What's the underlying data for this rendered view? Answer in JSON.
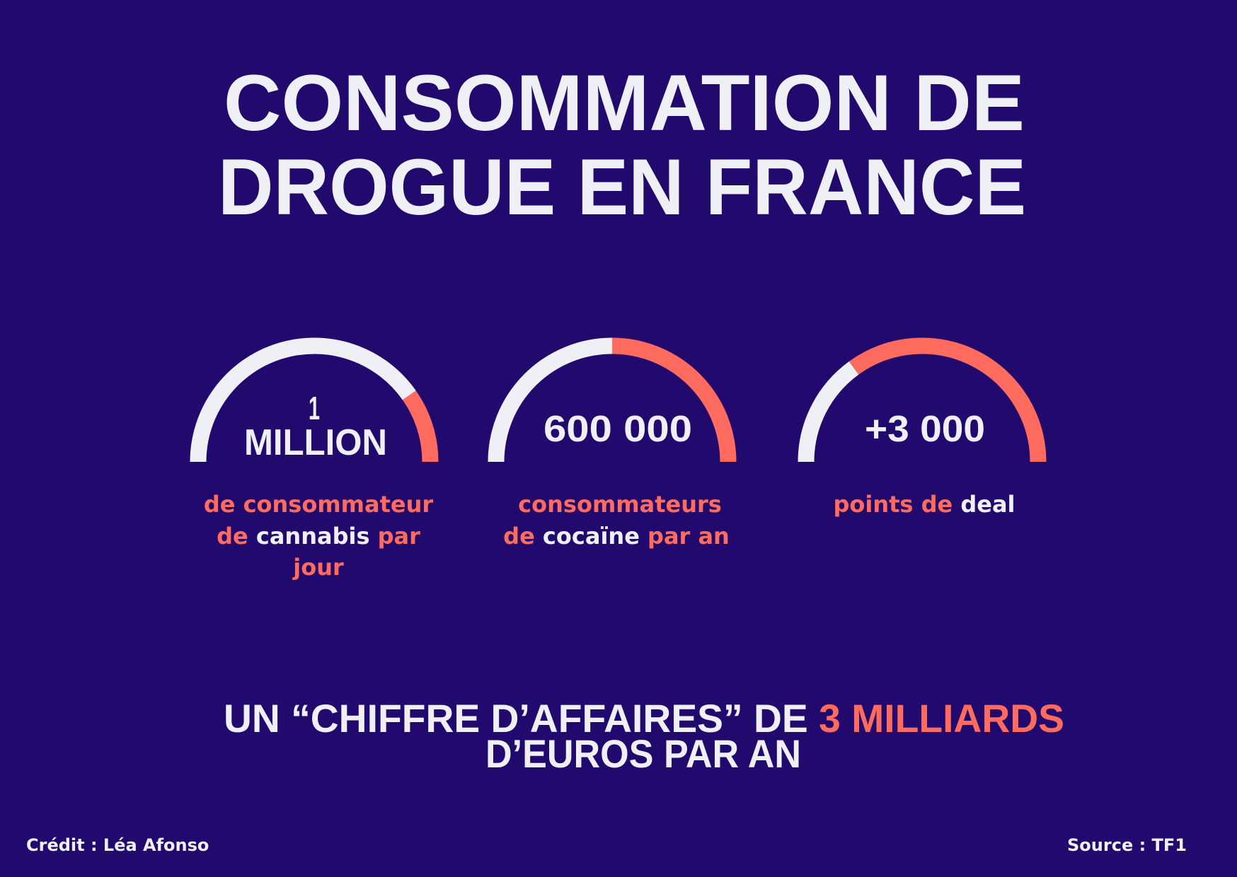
{
  "title": [
    "CONSOMMATION DE",
    "DROGUE EN FRANCE"
  ],
  "stats": [
    {
      "figure": [
        "1",
        "MILLION"
      ],
      "caption": [
        [
          "de consommateur"
        ],
        [
          "de",
          "cannabis",
          "par"
        ],
        [
          "jour"
        ]
      ]
    },
    {
      "figure": [
        "600 000"
      ],
      "caption": [
        [
          "consommateurs"
        ],
        [
          "de",
          "cocaïne",
          "par an"
        ]
      ]
    },
    {
      "figure": [
        "+3 000"
      ],
      "caption": [
        [
          "points de",
          "deal"
        ]
      ]
    }
  ],
  "summary": {
    "line1": [
      "UN “CHIFFRE D’AFFAIRES” DE",
      "3 MILLIARDS"
    ],
    "line2": "D’EUROS PAR AN"
  },
  "credit": "Crédit : Léa Afonso",
  "source": "Source : TF1"
}
